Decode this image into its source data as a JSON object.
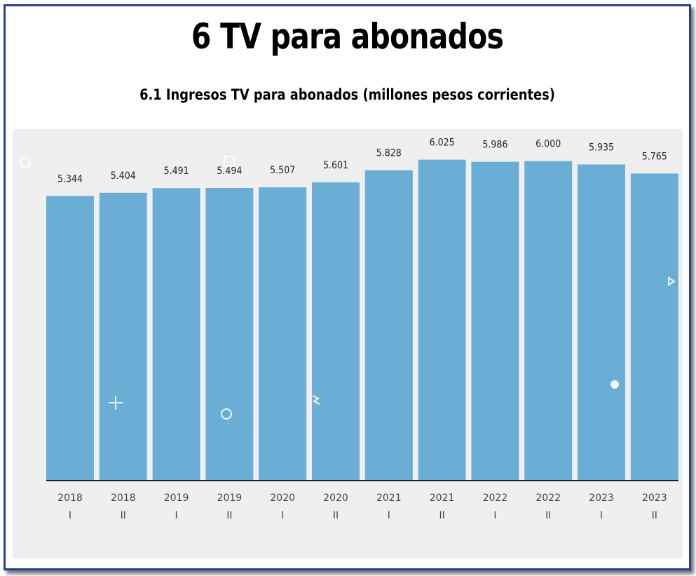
{
  "title": "6 TV para abonados",
  "subtitle": "6.1 Ingresos TV para abonados (millones pesos corrientes)",
  "colors": {
    "bar": "#6aaed6",
    "plot_bg": "#efefef",
    "frame": "#27418f"
  },
  "chart_data": {
    "type": "bar",
    "title": "6.1 Ingresos TV para abonados (millones pesos corrientes)",
    "categories": [
      {
        "year": "2018",
        "half": "I"
      },
      {
        "year": "2018",
        "half": "II"
      },
      {
        "year": "2019",
        "half": "I"
      },
      {
        "year": "2019",
        "half": "II"
      },
      {
        "year": "2020",
        "half": "I"
      },
      {
        "year": "2020",
        "half": "II"
      },
      {
        "year": "2021",
        "half": "I"
      },
      {
        "year": "2021",
        "half": "II"
      },
      {
        "year": "2022",
        "half": "I"
      },
      {
        "year": "2022",
        "half": "II"
      },
      {
        "year": "2023",
        "half": "I"
      },
      {
        "year": "2023",
        "half": "II"
      }
    ],
    "values": [
      5344,
      5404,
      5491,
      5494,
      5507,
      5601,
      5828,
      6025,
      5986,
      6000,
      5935,
      5765
    ],
    "value_labels": [
      "5.344",
      "5.404",
      "5.491",
      "5.494",
      "5.507",
      "5.601",
      "5.828",
      "6.025",
      "5.986",
      "6.000",
      "5.935",
      "5.765"
    ],
    "ylim": [
      0,
      6600
    ],
    "grid": false,
    "legend": "none"
  }
}
